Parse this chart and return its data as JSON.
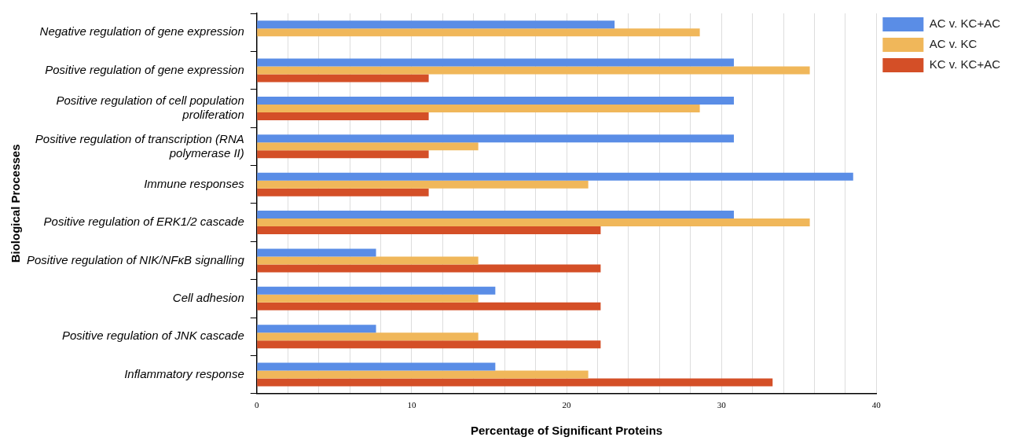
{
  "chart_data": {
    "type": "bar",
    "orientation": "horizontal",
    "xlabel": "Percentage of Significant Proteins",
    "ylabel": "Biological Processes",
    "categories": [
      "Negative regulation of gene expression",
      "Positive regulation of gene expression",
      "Positive regulation of cell population proliferation",
      "Positive regulation of transcription (RNA polymerase II)",
      "Immune responses",
      "Positive regulation of ERK1/2 cascade",
      "Positive regulation of NIK/NFκB signalling",
      "Cell adhesion",
      "Positive regulation of JNK cascade",
      "Inflammatory response"
    ],
    "series": [
      {
        "name": "AC v. KC+AC",
        "color": "#5a8de6",
        "values": [
          23.1,
          30.8,
          30.8,
          30.8,
          38.5,
          30.8,
          7.7,
          15.4,
          7.7,
          15.4
        ]
      },
      {
        "name": "AC v. KC",
        "color": "#f0b75a",
        "values": [
          28.6,
          35.7,
          28.6,
          14.3,
          21.4,
          35.7,
          14.3,
          14.3,
          14.3,
          21.4
        ]
      },
      {
        "name": "KC v. KC+AC",
        "color": "#d44f27",
        "values": [
          0,
          11.1,
          11.1,
          11.1,
          11.1,
          22.2,
          22.2,
          22.2,
          22.2,
          33.3
        ]
      }
    ],
    "xlim": [
      0,
      40
    ],
    "xticks": [
      0,
      {
        "value": 2,
        "label": null
      },
      {
        "value": 4,
        "label": null
      },
      {
        "value": 6,
        "label": null
      },
      {
        "value": 8,
        "label": null
      },
      10,
      {
        "value": 12,
        "label": null
      },
      {
        "value": 14,
        "label": null
      },
      {
        "value": 16,
        "label": null
      },
      {
        "value": 18,
        "label": null
      },
      20,
      {
        "value": 22,
        "label": null
      },
      {
        "value": 24,
        "label": null
      },
      {
        "value": 26,
        "label": null
      },
      {
        "value": 28,
        "label": null
      },
      30,
      {
        "value": 32,
        "label": null
      },
      {
        "value": 34,
        "label": null
      },
      {
        "value": 36,
        "label": null
      },
      {
        "value": 38,
        "label": null
      },
      40
    ],
    "grid": "x",
    "legend": "top right"
  }
}
